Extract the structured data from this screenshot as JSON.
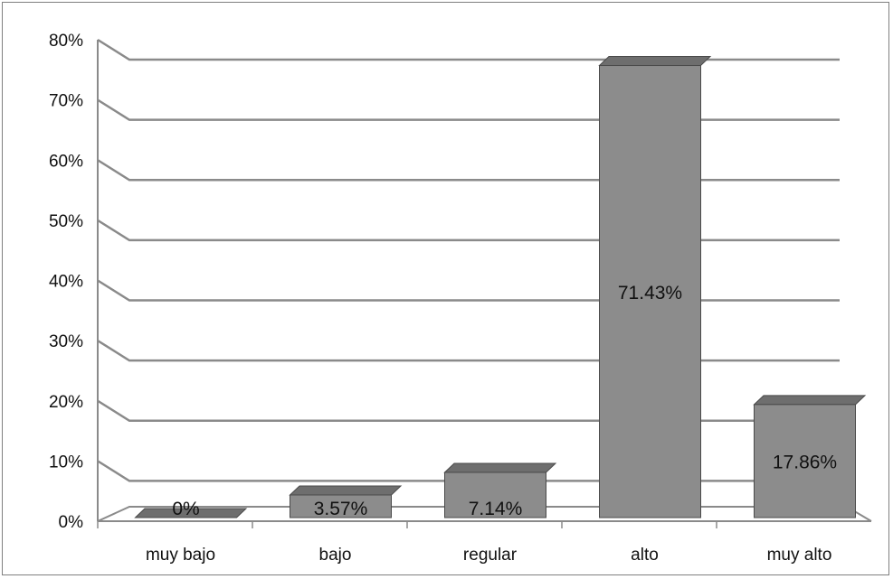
{
  "chart_data": {
    "type": "bar",
    "categories": [
      "muy bajo",
      "bajo",
      "regular",
      "alto",
      "muy alto"
    ],
    "values": [
      0,
      3.57,
      7.14,
      71.43,
      17.86
    ],
    "data_labels": [
      "0%",
      "3.57%",
      "7.14%",
      "71.43%",
      "17.86%"
    ],
    "y_ticks": [
      "0%",
      "10%",
      "20%",
      "30%",
      "40%",
      "50%",
      "60%",
      "70%",
      "80%"
    ],
    "ylim": [
      0,
      80
    ],
    "grid": true,
    "style": "3d-column",
    "colors": {
      "bar_front": "#8c8c8c",
      "bar_top": "#6e6e6e",
      "bar_side": "#5a5a5a",
      "gridline": "#8a8a8a",
      "frame": "#7f7f7f"
    }
  }
}
